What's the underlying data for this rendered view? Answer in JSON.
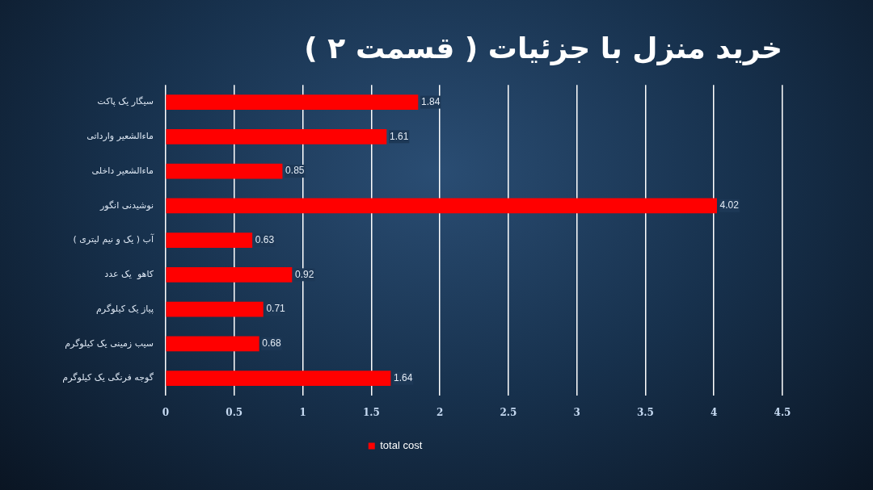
{
  "chart_data": {
    "type": "bar",
    "orientation": "horizontal",
    "title": "خرید منزل با جزئیات ( قسمت ۲ )",
    "categories": [
      "سیگار یک پاکت",
      "ماءالشعیر وارداتی",
      "ماءالشعیر داخلی",
      "نوشیدنی انگور",
      "آب ( یک و نیم لیتری )",
      "کاهو  یک عدد",
      "پیاز یک کیلوگرم",
      "سیب زمینی یک کیلوگرم",
      "گوجه فرنگی یک کیلوگرم"
    ],
    "series": [
      {
        "name": "total cost",
        "color": "#ff0000",
        "values": [
          1.84,
          1.61,
          0.85,
          4.02,
          0.63,
          0.92,
          0.71,
          0.68,
          1.64
        ]
      }
    ],
    "xlim": [
      0,
      4.5
    ],
    "xticks": [
      0,
      0.5,
      1,
      1.5,
      2,
      2.5,
      3,
      3.5,
      4,
      4.5
    ],
    "grid": "x",
    "legend": "bottom",
    "data_labels": true
  }
}
